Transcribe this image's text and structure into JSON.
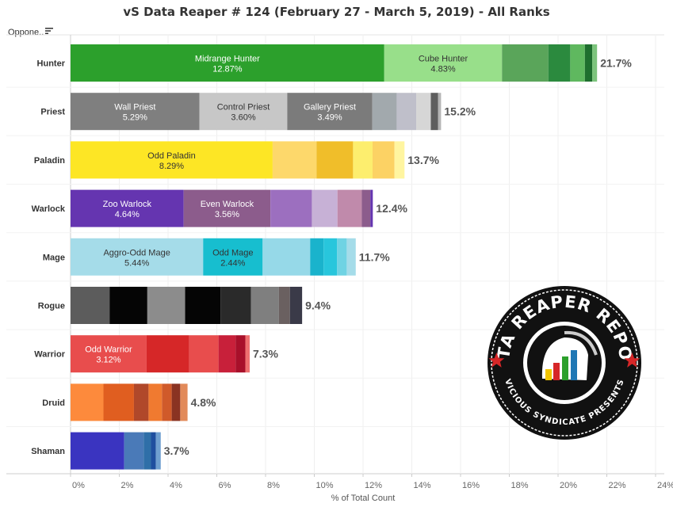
{
  "title": "vS Data Reaper # 124 (February 27 - March 5, 2019) - All Ranks",
  "row_header": "Oppone..",
  "axis": {
    "title": "% of Total Count",
    "ticks": [
      "0%",
      "2%",
      "4%",
      "6%",
      "8%",
      "10%",
      "12%",
      "14%",
      "16%",
      "18%",
      "20%",
      "22%",
      "24%"
    ]
  },
  "logo": {
    "top_text": "DATA REAPER REPORT",
    "bottom_text": "VICIOUS SYNDICATE PRESENTS"
  },
  "chart_data": {
    "type": "bar",
    "orientation": "horizontal",
    "stacked": true,
    "xlim": [
      0,
      24
    ],
    "xlabel": "% of Total Count",
    "ylabel": "Oppone..",
    "rows": [
      {
        "name": "Hunter",
        "total_label": "21.7%",
        "segments": [
          {
            "label": "Midrange Hunter",
            "value_label": "12.87%",
            "value": 12.87,
            "color": "#2ca02c",
            "text": "#ffffff"
          },
          {
            "label": "Cube Hunter",
            "value_label": "4.83%",
            "value": 4.83,
            "color": "#98df8a",
            "text": "#333333"
          },
          {
            "label": "",
            "value_label": "",
            "value": 1.9,
            "color": "#5aa55a",
            "text": ""
          },
          {
            "label": "",
            "value_label": "",
            "value": 0.9,
            "color": "#2b8a3e",
            "text": ""
          },
          {
            "label": "",
            "value_label": "",
            "value": 0.6,
            "color": "#5fb85f",
            "text": ""
          },
          {
            "label": "",
            "value_label": "",
            "value": 0.3,
            "color": "#1e6e2e",
            "text": ""
          },
          {
            "label": "",
            "value_label": "",
            "value": 0.2,
            "color": "#7cc47c",
            "text": ""
          }
        ]
      },
      {
        "name": "Priest",
        "total_label": "15.2%",
        "segments": [
          {
            "label": "Wall Priest",
            "value_label": "5.29%",
            "value": 5.29,
            "color": "#7f7f7f",
            "text": "#ffffff"
          },
          {
            "label": "Control Priest",
            "value_label": "3.60%",
            "value": 3.6,
            "color": "#c7c7c7",
            "text": "#333333"
          },
          {
            "label": "Gallery Priest",
            "value_label": "3.49%",
            "value": 3.49,
            "color": "#7b7b7b",
            "text": "#ffffff"
          },
          {
            "label": "",
            "value_label": "",
            "value": 1.0,
            "color": "#a2a9ad",
            "text": ""
          },
          {
            "label": "",
            "value_label": "",
            "value": 0.8,
            "color": "#bfbfca",
            "text": ""
          },
          {
            "label": "",
            "value_label": "",
            "value": 0.6,
            "color": "#d6d6d6",
            "text": ""
          },
          {
            "label": "",
            "value_label": "",
            "value": 0.3,
            "color": "#5e5e5e",
            "text": ""
          },
          {
            "label": "",
            "value_label": "",
            "value": 0.12,
            "color": "#b5b5b5",
            "text": ""
          }
        ]
      },
      {
        "name": "Paladin",
        "total_label": "13.7%",
        "segments": [
          {
            "label": "Odd Paladin",
            "value_label": "8.29%",
            "value": 8.29,
            "color": "#fde625",
            "text": "#333333"
          },
          {
            "label": "",
            "value_label": "",
            "value": 1.8,
            "color": "#fdd86b",
            "text": ""
          },
          {
            "label": "",
            "value_label": "",
            "value": 1.5,
            "color": "#f0be2a",
            "text": ""
          },
          {
            "label": "",
            "value_label": "",
            "value": 0.8,
            "color": "#fdee6e",
            "text": ""
          },
          {
            "label": "",
            "value_label": "",
            "value": 0.9,
            "color": "#fcd264",
            "text": ""
          },
          {
            "label": "",
            "value_label": "",
            "value": 0.41,
            "color": "#fff5a0",
            "text": ""
          }
        ]
      },
      {
        "name": "Warlock",
        "total_label": "12.4%",
        "segments": [
          {
            "label": "Zoo Warlock",
            "value_label": "4.64%",
            "value": 4.64,
            "color": "#6535b0",
            "text": "#ffffff"
          },
          {
            "label": "Even Warlock",
            "value_label": "3.56%",
            "value": 3.56,
            "color": "#8c5c8c",
            "text": "#ffffff"
          },
          {
            "label": "",
            "value_label": "",
            "value": 1.7,
            "color": "#9c6fbf",
            "text": ""
          },
          {
            "label": "",
            "value_label": "",
            "value": 1.05,
            "color": "#c7b1d6",
            "text": ""
          },
          {
            "label": "",
            "value_label": "",
            "value": 1.0,
            "color": "#c08aab",
            "text": ""
          },
          {
            "label": "",
            "value_label": "",
            "value": 0.35,
            "color": "#8c5c8c",
            "text": ""
          },
          {
            "label": "",
            "value_label": "",
            "value": 0.1,
            "color": "#6535b0",
            "text": ""
          }
        ]
      },
      {
        "name": "Mage",
        "total_label": "11.7%",
        "segments": [
          {
            "label": "Aggro-Odd Mage",
            "value_label": "5.44%",
            "value": 5.44,
            "color": "#a5dce9",
            "text": "#333333"
          },
          {
            "label": "Odd Mage",
            "value_label": "2.44%",
            "value": 2.44,
            "color": "#17becf",
            "text": "#333333"
          },
          {
            "label": "",
            "value_label": "",
            "value": 1.95,
            "color": "#96d9e8",
            "text": ""
          },
          {
            "label": "",
            "value_label": "",
            "value": 0.55,
            "color": "#1ab3cc",
            "text": ""
          },
          {
            "label": "",
            "value_label": "",
            "value": 0.55,
            "color": "#28c6dc",
            "text": ""
          },
          {
            "label": "",
            "value_label": "",
            "value": 0.4,
            "color": "#6fd3e3",
            "text": ""
          },
          {
            "label": "",
            "value_label": "",
            "value": 0.37,
            "color": "#a5dce9",
            "text": ""
          }
        ]
      },
      {
        "name": "Rogue",
        "total_label": "9.4%",
        "segments": [
          {
            "label": "",
            "value_label": "",
            "value": 1.6,
            "color": "#5c5c5c",
            "text": ""
          },
          {
            "label": "",
            "value_label": "",
            "value": 1.55,
            "color": "#050505",
            "text": ""
          },
          {
            "label": "",
            "value_label": "",
            "value": 1.55,
            "color": "#8c8c8c",
            "text": ""
          },
          {
            "label": "",
            "value_label": "",
            "value": 1.45,
            "color": "#050505",
            "text": ""
          },
          {
            "label": "",
            "value_label": "",
            "value": 1.25,
            "color": "#2a2a2a",
            "text": ""
          },
          {
            "label": "",
            "value_label": "",
            "value": 1.15,
            "color": "#7f7f7f",
            "text": ""
          },
          {
            "label": "",
            "value_label": "",
            "value": 0.45,
            "color": "#6a6060",
            "text": ""
          },
          {
            "label": "",
            "value_label": "",
            "value": 0.5,
            "color": "#3a3a48",
            "text": ""
          }
        ]
      },
      {
        "name": "Warrior",
        "total_label": "7.3%",
        "segments": [
          {
            "label": "Odd Warrior",
            "value_label": "3.12%",
            "value": 3.12,
            "color": "#e84d4d",
            "text": "#ffffff"
          },
          {
            "label": "",
            "value_label": "",
            "value": 1.75,
            "color": "#d62728",
            "text": ""
          },
          {
            "label": "",
            "value_label": "",
            "value": 1.2,
            "color": "#e84d4d",
            "text": ""
          },
          {
            "label": "",
            "value_label": "",
            "value": 0.7,
            "color": "#c8203a",
            "text": ""
          },
          {
            "label": "",
            "value_label": "",
            "value": 0.4,
            "color": "#a8102a",
            "text": ""
          },
          {
            "label": "",
            "value_label": "",
            "value": 0.18,
            "color": "#ee7070",
            "text": ""
          }
        ]
      },
      {
        "name": "Druid",
        "total_label": "4.8%",
        "segments": [
          {
            "label": "",
            "value_label": "",
            "value": 1.35,
            "color": "#fd8a3c",
            "text": ""
          },
          {
            "label": "",
            "value_label": "",
            "value": 1.25,
            "color": "#e05e20",
            "text": ""
          },
          {
            "label": "",
            "value_label": "",
            "value": 0.6,
            "color": "#b0482a",
            "text": ""
          },
          {
            "label": "",
            "value_label": "",
            "value": 0.55,
            "color": "#f07a30",
            "text": ""
          },
          {
            "label": "",
            "value_label": "",
            "value": 0.4,
            "color": "#d05a2a",
            "text": ""
          },
          {
            "label": "",
            "value_label": "",
            "value": 0.35,
            "color": "#8a3322",
            "text": ""
          },
          {
            "label": "",
            "value_label": "",
            "value": 0.3,
            "color": "#e28a5a",
            "text": ""
          }
        ]
      },
      {
        "name": "Shaman",
        "total_label": "3.7%",
        "segments": [
          {
            "label": "",
            "value_label": "",
            "value": 2.2,
            "color": "#3a34c0",
            "text": ""
          },
          {
            "label": "",
            "value_label": "",
            "value": 0.8,
            "color": "#4a7ab8",
            "text": ""
          },
          {
            "label": "",
            "value_label": "",
            "value": 0.3,
            "color": "#2f6fa8",
            "text": ""
          },
          {
            "label": "",
            "value_label": "",
            "value": 0.2,
            "color": "#1f4f9f",
            "text": ""
          },
          {
            "label": "",
            "value_label": "",
            "value": 0.2,
            "color": "#6f9fd0",
            "text": ""
          }
        ]
      }
    ]
  }
}
